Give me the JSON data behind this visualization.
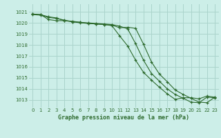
{
  "title": "Graphe pression niveau de la mer (hPa)",
  "background_color": "#cceee8",
  "grid_color": "#aad4cc",
  "line_color": "#2d6a2d",
  "xlim": [
    -0.5,
    23.5
  ],
  "ylim": [
    1012.3,
    1021.7
  ],
  "yticks": [
    1013,
    1014,
    1015,
    1016,
    1017,
    1018,
    1019,
    1020,
    1021
  ],
  "xticks": [
    0,
    1,
    2,
    3,
    4,
    5,
    6,
    7,
    8,
    9,
    10,
    11,
    12,
    13,
    14,
    15,
    16,
    17,
    18,
    19,
    20,
    21,
    22,
    23
  ],
  "series1_x": [
    0,
    1,
    2,
    3,
    4,
    5,
    6,
    7,
    8,
    9,
    10,
    11,
    12,
    13,
    14,
    15,
    16,
    17,
    18,
    19,
    20,
    21,
    22,
    23
  ],
  "series1_y": [
    1020.8,
    1020.75,
    1020.55,
    1020.45,
    1020.2,
    1020.15,
    1020.05,
    1020.0,
    1019.95,
    1019.9,
    1019.85,
    1019.7,
    1019.45,
    1018.1,
    1016.6,
    1015.4,
    1014.7,
    1014.0,
    1013.5,
    1013.15,
    1012.8,
    1012.75,
    1013.25,
    1013.2
  ],
  "series2_x": [
    0,
    1,
    2,
    3,
    4,
    5,
    6,
    7,
    8,
    9,
    10,
    11,
    12,
    13,
    14,
    15,
    16,
    17,
    18,
    19,
    20,
    21,
    22,
    23
  ],
  "series2_y": [
    1020.8,
    1020.75,
    1020.3,
    1020.2,
    1020.2,
    1020.1,
    1020.05,
    1019.95,
    1019.9,
    1019.85,
    1019.8,
    1019.55,
    1019.6,
    1019.5,
    1018.05,
    1016.45,
    1015.35,
    1014.65,
    1013.9,
    1013.5,
    1013.15,
    1012.8,
    1012.75,
    1013.25
  ],
  "series3_x": [
    0,
    1,
    2,
    3,
    4,
    5,
    6,
    7,
    8,
    9,
    10,
    11,
    12,
    13,
    14,
    15,
    16,
    17,
    18,
    19,
    20,
    21,
    22,
    23
  ],
  "series3_y": [
    1020.75,
    1020.7,
    1020.5,
    1020.4,
    1020.25,
    1020.1,
    1020.0,
    1019.95,
    1019.9,
    1019.85,
    1019.75,
    1018.8,
    1017.9,
    1016.6,
    1015.5,
    1014.8,
    1014.15,
    1013.55,
    1013.05,
    1013.2,
    1013.2,
    1013.1,
    1013.35,
    1013.25
  ]
}
